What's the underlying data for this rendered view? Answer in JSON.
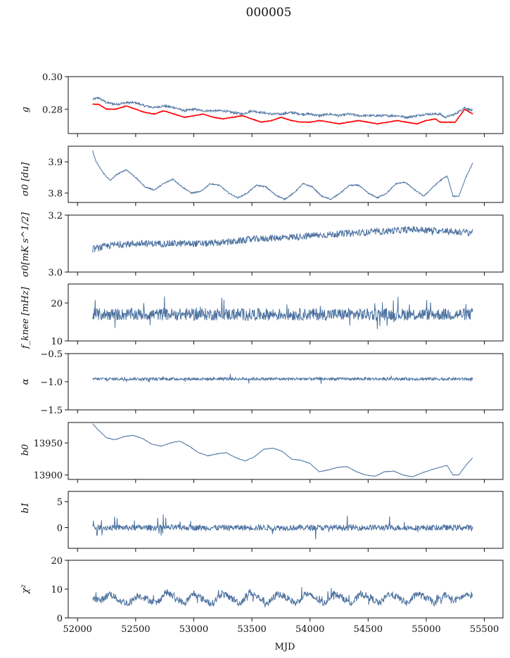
{
  "figure": {
    "title": "000005",
    "xlabel": "MJD",
    "x_ticks": [
      52000,
      52500,
      53000,
      53500,
      54000,
      54500,
      55000,
      55500
    ],
    "xlim": [
      51920,
      55660
    ]
  },
  "chart_data": [
    {
      "type": "line",
      "ylabel": "g",
      "ylim": [
        0.265,
        0.3
      ],
      "y_ticks": [
        0.28,
        0.3
      ],
      "y_tick_labels": [
        "0.28",
        "0.30"
      ],
      "x": [
        52130,
        52180,
        52250,
        52330,
        52420,
        52500,
        52580,
        52660,
        52740,
        52830,
        52920,
        53000,
        53080,
        53170,
        53250,
        53330,
        53420,
        53500,
        53580,
        53670,
        53750,
        53840,
        53920,
        54000,
        54080,
        54170,
        54250,
        54330,
        54420,
        54500,
        54580,
        54670,
        54750,
        54830,
        54920,
        55000,
        55080,
        55120,
        55160,
        55250,
        55330,
        55400
      ],
      "series": [
        {
          "color": "#4c72a0",
          "values": [
            0.286,
            0.287,
            0.284,
            0.283,
            0.284,
            0.284,
            0.282,
            0.281,
            0.282,
            0.281,
            0.279,
            0.28,
            0.279,
            0.279,
            0.279,
            0.278,
            0.277,
            0.279,
            0.278,
            0.277,
            0.277,
            0.278,
            0.277,
            0.277,
            0.276,
            0.277,
            0.276,
            0.277,
            0.276,
            0.276,
            0.276,
            0.276,
            0.276,
            0.275,
            0.276,
            0.277,
            0.277,
            0.277,
            0.275,
            0.277,
            0.281,
            0.279
          ]
        },
        {
          "color": "#ff0000",
          "values": [
            0.283,
            0.283,
            0.28,
            0.28,
            0.282,
            0.28,
            0.278,
            0.277,
            0.279,
            0.277,
            0.275,
            0.276,
            0.277,
            0.275,
            0.274,
            0.275,
            0.276,
            0.274,
            0.272,
            0.273,
            0.275,
            0.273,
            0.272,
            0.272,
            0.273,
            0.272,
            0.271,
            0.272,
            0.273,
            0.272,
            0.271,
            0.272,
            0.273,
            0.272,
            0.271,
            0.273,
            0.274,
            0.272,
            0.272,
            0.272,
            0.28,
            0.277
          ]
        }
      ]
    },
    {
      "type": "line",
      "ylabel": "σ0 [du]",
      "ylim": [
        3.77,
        3.95
      ],
      "y_ticks": [
        3.8,
        3.9
      ],
      "y_tick_labels": [
        "3.8",
        "3.9"
      ],
      "x": [
        52130,
        52160,
        52220,
        52280,
        52340,
        52420,
        52500,
        52580,
        52660,
        52740,
        52820,
        52900,
        52980,
        53060,
        53140,
        53220,
        53300,
        53380,
        53460,
        53540,
        53620,
        53700,
        53780,
        53860,
        53940,
        54020,
        54100,
        54180,
        54260,
        54340,
        54420,
        54500,
        54580,
        54660,
        54740,
        54820,
        54900,
        54980,
        55060,
        55120,
        55180,
        55230,
        55280,
        55340,
        55400
      ],
      "series": [
        {
          "color": "#4c72a0",
          "values": [
            3.935,
            3.9,
            3.865,
            3.84,
            3.86,
            3.875,
            3.85,
            3.82,
            3.81,
            3.83,
            3.845,
            3.82,
            3.8,
            3.805,
            3.83,
            3.825,
            3.8,
            3.785,
            3.8,
            3.825,
            3.82,
            3.795,
            3.78,
            3.8,
            3.83,
            3.82,
            3.79,
            3.78,
            3.8,
            3.825,
            3.825,
            3.8,
            3.785,
            3.8,
            3.83,
            3.835,
            3.81,
            3.79,
            3.82,
            3.84,
            3.855,
            3.79,
            3.79,
            3.85,
            3.895
          ]
        }
      ]
    },
    {
      "type": "line",
      "ylabel": "σ0[mK s^1/2]",
      "ylim": [
        3.0,
        3.2
      ],
      "y_ticks": [
        3.0,
        3.2
      ],
      "y_tick_labels": [
        "3.0",
        "3.2"
      ],
      "x": [
        52130,
        52300,
        52500,
        52700,
        52900,
        53100,
        53300,
        53500,
        53700,
        53900,
        54100,
        54300,
        54500,
        54700,
        54900,
        55100,
        55300,
        55400
      ],
      "series": [
        {
          "color": "#4c72a0",
          "values": [
            3.08,
            3.095,
            3.1,
            3.1,
            3.1,
            3.1,
            3.105,
            3.115,
            3.12,
            3.125,
            3.13,
            3.135,
            3.14,
            3.145,
            3.15,
            3.145,
            3.14,
            3.14
          ]
        }
      ]
    },
    {
      "type": "line",
      "ylabel": "f_knee [mHz]",
      "ylim": [
        10,
        25
      ],
      "y_ticks": [
        10,
        20
      ],
      "y_tick_labels": [
        "10",
        "20"
      ],
      "x": [
        52130,
        52500,
        53000,
        53500,
        54000,
        54500,
        55000,
        55400
      ],
      "series": [
        {
          "color": "#4c72a0",
          "values": [
            17,
            17,
            17,
            17,
            17,
            17,
            17,
            17
          ]
        }
      ]
    },
    {
      "type": "line",
      "ylabel": "α",
      "ylim": [
        -1.5,
        -0.5
      ],
      "y_ticks": [
        -1.5,
        -1.0,
        -0.5
      ],
      "y_tick_labels": [
        "−1.5",
        "−1.0",
        "−0.5"
      ],
      "x": [
        52130,
        52500,
        53000,
        53500,
        54000,
        54500,
        55000,
        55400
      ],
      "series": [
        {
          "color": "#4c72a0",
          "values": [
            -0.95,
            -0.95,
            -0.95,
            -0.95,
            -0.95,
            -0.95,
            -0.95,
            -0.95
          ]
        }
      ]
    },
    {
      "type": "line",
      "ylabel": "b0",
      "ylim": [
        13893,
        13982
      ],
      "y_ticks": [
        13900,
        13950
      ],
      "y_tick_labels": [
        "13900",
        "13950"
      ],
      "x": [
        52130,
        52180,
        52250,
        52320,
        52400,
        52480,
        52560,
        52640,
        52720,
        52800,
        52880,
        52960,
        53040,
        53120,
        53200,
        53280,
        53360,
        53440,
        53520,
        53600,
        53680,
        53760,
        53840,
        53920,
        54000,
        54080,
        54160,
        54240,
        54320,
        54400,
        54480,
        54560,
        54640,
        54720,
        54800,
        54880,
        54960,
        55040,
        55120,
        55180,
        55230,
        55280,
        55340,
        55400
      ],
      "series": [
        {
          "color": "#4c72a0",
          "values": [
            13980,
            13970,
            13958,
            13955,
            13960,
            13962,
            13957,
            13948,
            13945,
            13950,
            13953,
            13945,
            13935,
            13930,
            13933,
            13935,
            13927,
            13922,
            13928,
            13940,
            13942,
            13937,
            13925,
            13923,
            13918,
            13905,
            13908,
            13912,
            13913,
            13905,
            13900,
            13898,
            13905,
            13906,
            13900,
            13897,
            13903,
            13908,
            13912,
            13915,
            13900,
            13900,
            13915,
            13927
          ]
        }
      ]
    },
    {
      "type": "line",
      "ylabel": "b1",
      "ylim": [
        -4,
        7
      ],
      "y_ticks": [
        0,
        5
      ],
      "y_tick_labels": [
        "0",
        "5"
      ],
      "x": [
        52130,
        52500,
        53000,
        53500,
        54000,
        54500,
        55000,
        55400
      ],
      "series": [
        {
          "color": "#4c72a0",
          "values": [
            0,
            0,
            0,
            0,
            0,
            0,
            0,
            0
          ]
        }
      ]
    },
    {
      "type": "line",
      "ylabel": "χ²",
      "ylim": [
        0,
        20
      ],
      "y_ticks": [
        0,
        10,
        20
      ],
      "y_tick_labels": [
        "0",
        "10",
        "20"
      ],
      "x": [
        52130,
        52200,
        52280,
        52360,
        52440,
        52520,
        52600,
        52680,
        52760,
        52840,
        52920,
        53000,
        53080,
        53160,
        53240,
        53320,
        53400,
        53480,
        53560,
        53640,
        53720,
        53800,
        53880,
        53960,
        54040,
        54120,
        54200,
        54280,
        54360,
        54440,
        54520,
        54600,
        54680,
        54760,
        54840,
        54920,
        55000,
        55080,
        55160,
        55240,
        55320,
        55400
      ],
      "series": [
        {
          "color": "#4c72a0",
          "values": [
            7,
            6,
            8.5,
            6,
            5,
            8,
            6.5,
            5,
            9,
            7,
            5,
            8.5,
            6.5,
            5,
            8.5,
            7,
            5,
            9,
            7,
            5,
            8.5,
            7,
            5,
            8.5,
            7,
            5,
            8.5,
            7,
            5,
            8.5,
            7,
            5,
            8.5,
            7,
            5,
            8.5,
            7,
            5,
            8,
            6,
            7.5,
            8
          ]
        }
      ]
    }
  ]
}
